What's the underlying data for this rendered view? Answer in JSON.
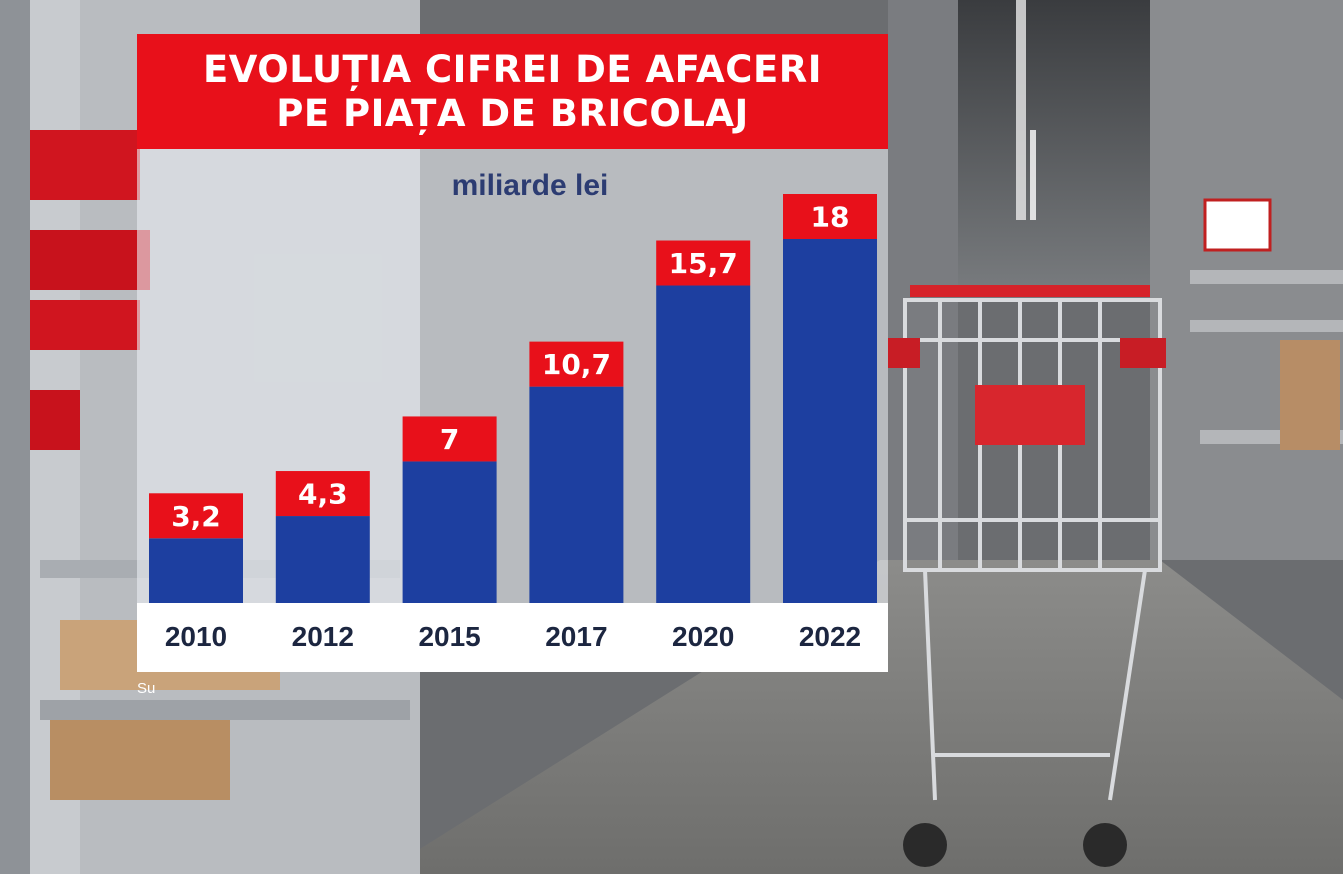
{
  "title_lines": [
    "EVOLUȚIA CIFREI DE AFACERI",
    "PE PIAȚA DE BRICOLAJ"
  ],
  "unit_label": "miliarde lei",
  "source_fragment": "Su",
  "colors": {
    "title_bg": "#e8101a",
    "bar": "#1d3fa0",
    "label_bg": "#e8101a",
    "label_text": "#ffffff",
    "axis_bg": "#ffffff"
  },
  "chart_data": {
    "type": "bar",
    "title": "EVOLUȚIA CIFREI DE AFACERI PE PIAȚA DE BRICOLAJ",
    "ylabel": "miliarde lei",
    "categories": [
      "2010",
      "2012",
      "2015",
      "2017",
      "2020",
      "2022"
    ],
    "values": [
      3.2,
      4.3,
      7,
      10.7,
      15.7,
      18
    ],
    "value_labels": [
      "3,2",
      "4,3",
      "7",
      "10,7",
      "15,7",
      "18"
    ],
    "ylim": [
      0,
      18
    ],
    "grid": false,
    "legend": "none"
  }
}
